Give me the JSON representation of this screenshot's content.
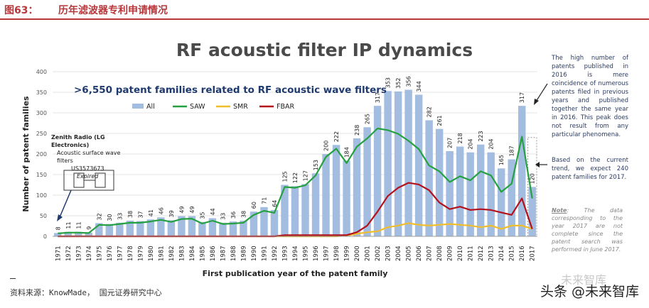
{
  "header": {
    "figure_label": "图63：",
    "figure_title": "历年滤波器专利申请情况"
  },
  "source_text": "资料来源：KnowMade， 国元证券研究中心",
  "watermark": "头条 @未来智库",
  "watermark_ghost": "未来智库",
  "colors": {
    "brand_red": "#b7373b",
    "all": "#a3bde0",
    "saw": "#25a040",
    "smr": "#f0bd2c",
    "fbar": "#b3121b"
  },
  "chart_data": {
    "type": "bar",
    "title": "RF acoustic filter IP dynamics",
    "subtitle": ">6,550 patent families related to RF acoustic wave filters",
    "xlabel": "First publication year of the patent family",
    "ylabel": "Number of patent families",
    "ylim": [
      0,
      400
    ],
    "yticks": [
      0,
      50,
      100,
      150,
      200,
      250,
      300,
      350,
      400
    ],
    "legend_position": "top",
    "grid": true,
    "categories": [
      "1971",
      "1972",
      "1973",
      "1974",
      "1975",
      "1976",
      "1977",
      "1978",
      "1979",
      "1980",
      "1981",
      "1982",
      "1983",
      "1984",
      "1985",
      "1986",
      "1987",
      "1988",
      "1989",
      "1990",
      "1991",
      "1992",
      "1993",
      "1994",
      "1995",
      "1996",
      "1997",
      "1998",
      "1999",
      "2000",
      "2001",
      "2002",
      "2003",
      "2004",
      "2005",
      "2006",
      "2007",
      "2008",
      "2009",
      "2010",
      "2011",
      "2012",
      "2013",
      "2014",
      "2015",
      "2016",
      "2017"
    ],
    "series": [
      {
        "name": "All",
        "kind": "bar",
        "values": [
          8,
          11,
          11,
          9,
          32,
          30,
          33,
          38,
          37,
          41,
          46,
          39,
          49,
          49,
          35,
          44,
          33,
          36,
          38,
          60,
          71,
          64,
          125,
          122,
          127,
          153,
          200,
          222,
          184,
          238,
          265,
          317,
          353,
          352,
          356,
          344,
          282,
          261,
          207,
          218,
          204,
          223,
          204,
          165,
          187,
          317,
          120
        ]
      },
      {
        "name": "SAW",
        "kind": "line",
        "values": [
          7,
          9,
          9,
          8,
          28,
          27,
          30,
          33,
          33,
          36,
          40,
          35,
          42,
          43,
          31,
          38,
          30,
          31,
          33,
          52,
          62,
          57,
          120,
          118,
          124,
          148,
          193,
          213,
          178,
          218,
          238,
          262,
          258,
          249,
          232,
          212,
          172,
          158,
          132,
          146,
          136,
          158,
          148,
          108,
          128,
          242,
          92
        ]
      },
      {
        "name": "SMR",
        "kind": "line",
        "values": [
          0,
          0,
          0,
          0,
          0,
          0,
          0,
          0,
          0,
          0,
          0,
          0,
          0,
          0,
          0,
          0,
          0,
          0,
          0,
          0,
          0,
          0,
          0,
          0,
          0,
          0,
          0,
          0,
          2,
          6,
          10,
          12,
          22,
          26,
          32,
          28,
          26,
          28,
          30,
          28,
          26,
          22,
          26,
          18,
          26,
          26,
          18
        ]
      },
      {
        "name": "FBAR",
        "kind": "line",
        "values": [
          0,
          0,
          0,
          0,
          0,
          0,
          0,
          0,
          0,
          0,
          0,
          0,
          0,
          0,
          0,
          0,
          0,
          0,
          0,
          0,
          0,
          0,
          3,
          3,
          3,
          3,
          3,
          3,
          3,
          10,
          26,
          60,
          98,
          118,
          130,
          126,
          112,
          82,
          66,
          72,
          64,
          66,
          64,
          58,
          52,
          92,
          18
        ]
      }
    ],
    "bar_labels": [
      "8",
      "11",
      "11",
      "9",
      "32",
      "30",
      "33",
      "38",
      "37",
      "41",
      "46",
      "39",
      "49",
      "49",
      "35",
      "44",
      "33",
      "36",
      "38",
      "60",
      "71",
      "64",
      "125",
      "122",
      "127",
      "153",
      "200",
      "222",
      "184",
      "238",
      "265",
      "317",
      "353",
      "352",
      "356",
      "344",
      "282",
      "261",
      "207",
      "218",
      "204",
      "223",
      "204",
      "165",
      "187",
      "317",
      "120"
    ],
    "annotations": {
      "inset_title": "Zenith Radio (LG Electronics)",
      "inset_line1": "Acoustic surface wave filters",
      "inset_line2": "US3573673",
      "inset_line3": "Expired",
      "note_2016": "The high number of patents published in 2016 is mere coincidence of numerous patents filed in previous years and published together the same year in 2016. This peak does not result from any particular phenomena.",
      "note_2017": "Based on the current trend, we expect 240 patent families for 2017.",
      "note_data_label": "Note",
      "note_data": ": The data corresponding to the year 2017 are not complete since the patent search was performed in June 2017."
    }
  }
}
